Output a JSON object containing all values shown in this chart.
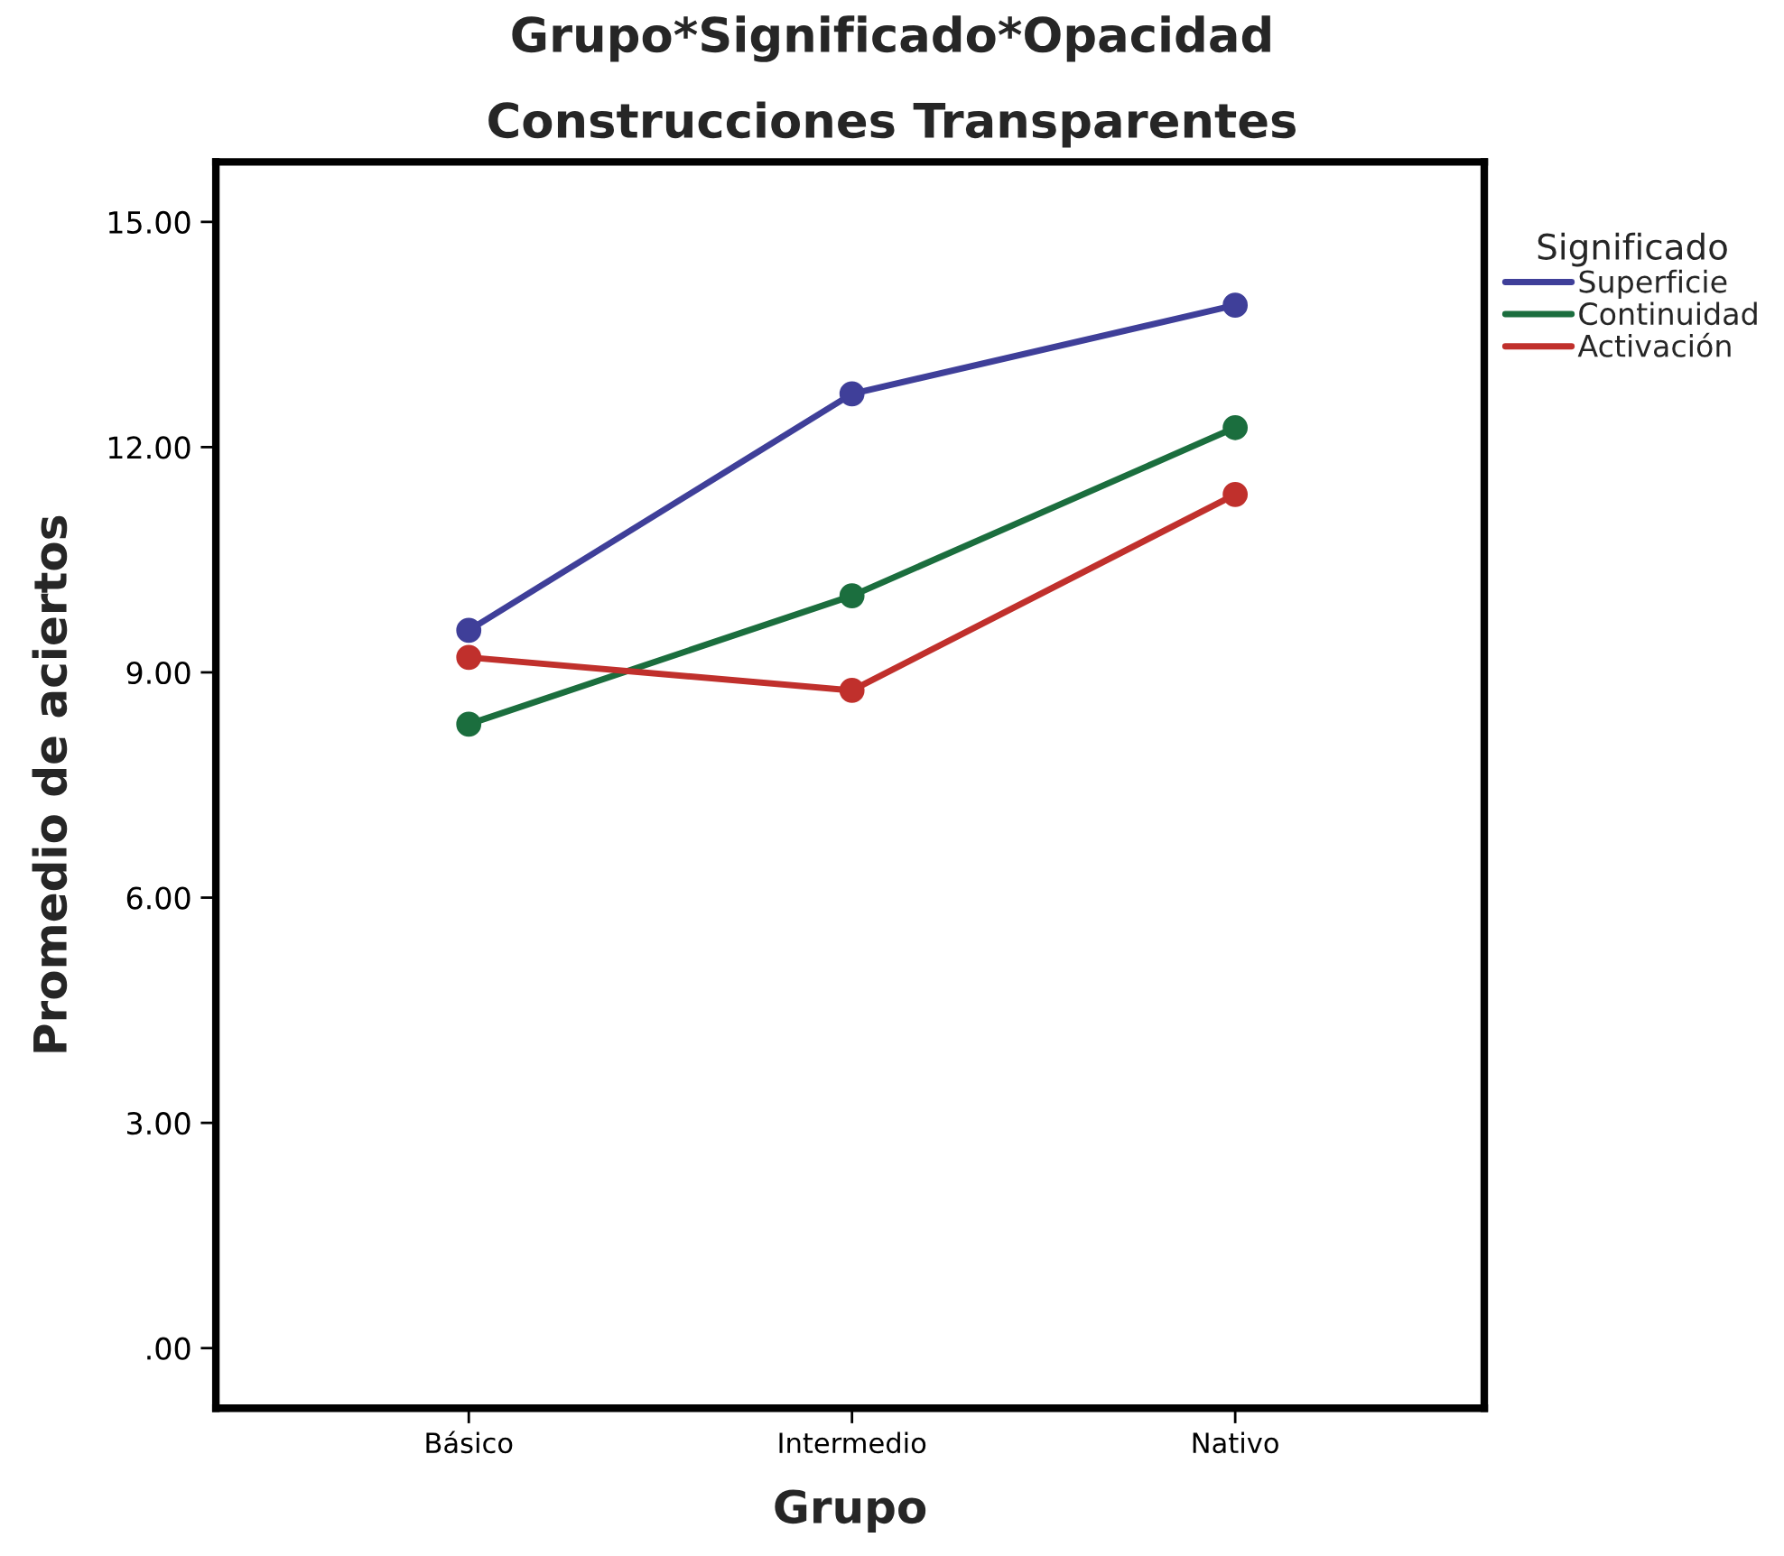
{
  "chart_data": {
    "type": "line",
    "title": "Grupo*Significado*Opacidad",
    "subtitle": "Construcciones Transparentes",
    "xlabel": "Grupo",
    "ylabel": "Promedio de aciertos",
    "legend_title": "Significado",
    "categories": [
      "Básico",
      "Intermedio",
      "Nativo"
    ],
    "series": [
      {
        "name": "Superficie",
        "color": "#3f3f99",
        "values": [
          9.56,
          12.71,
          13.89
        ]
      },
      {
        "name": "Continuidad",
        "color": "#1b6e3e",
        "values": [
          8.31,
          10.02,
          12.26
        ]
      },
      {
        "name": "Activación",
        "color": "#c0302c",
        "values": [
          9.2,
          8.76,
          11.37
        ]
      }
    ],
    "ylim": [
      -0.8,
      15.8
    ],
    "yticks": [
      {
        "value": 0,
        "label": ".00"
      },
      {
        "value": 3,
        "label": "3.00"
      },
      {
        "value": 6,
        "label": "6.00"
      },
      {
        "value": 9,
        "label": "9.00"
      },
      {
        "value": 12,
        "label": "12.00"
      },
      {
        "value": 15,
        "label": "15.00"
      }
    ],
    "legend": "top right",
    "marker": "circle",
    "line_style": "solid",
    "grid": false
  }
}
